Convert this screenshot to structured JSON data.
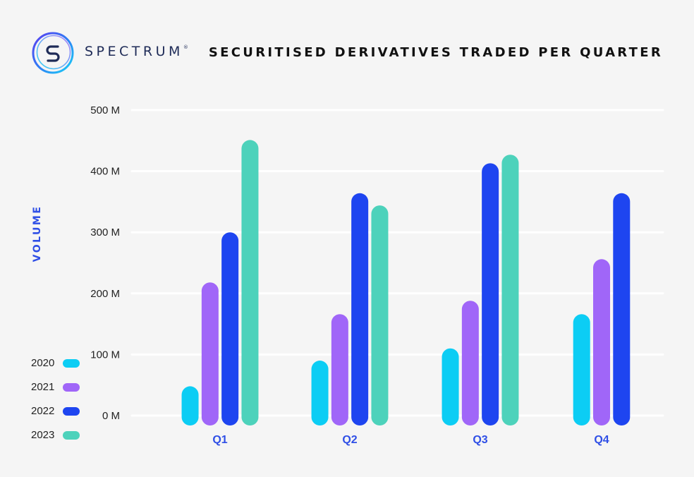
{
  "brand": {
    "name": "SPECTRUM",
    "mark": "®",
    "logo_icon": "spectrum-s-logo-icon"
  },
  "chart_data": {
    "type": "bar",
    "title": "SECURITISED DERIVATIVES TRADED PER QUARTER",
    "xlabel": "",
    "ylabel": "VOLUME",
    "categories": [
      "Q1",
      "Q2",
      "Q3",
      "Q4"
    ],
    "series": [
      {
        "name": "2020",
        "color": "#0ccdf4",
        "values": [
          48,
          90,
          110,
          166
        ]
      },
      {
        "name": "2021",
        "color": "#a066f8",
        "values": [
          218,
          166,
          188,
          256
        ]
      },
      {
        "name": "2022",
        "color": "#1e45f0",
        "values": [
          300,
          364,
          413,
          364
        ]
      },
      {
        "name": "2023",
        "color": "#4dd2bb",
        "values": [
          451,
          344,
          427,
          null
        ]
      }
    ],
    "yticks": [
      "0 M",
      "100 M",
      "200 M",
      "300 M",
      "400 M",
      "500 M"
    ],
    "ytick_values": [
      0,
      100,
      200,
      300,
      400,
      500
    ],
    "ylim": [
      0,
      500
    ],
    "grid": true,
    "legend_position": "bottom-left"
  }
}
